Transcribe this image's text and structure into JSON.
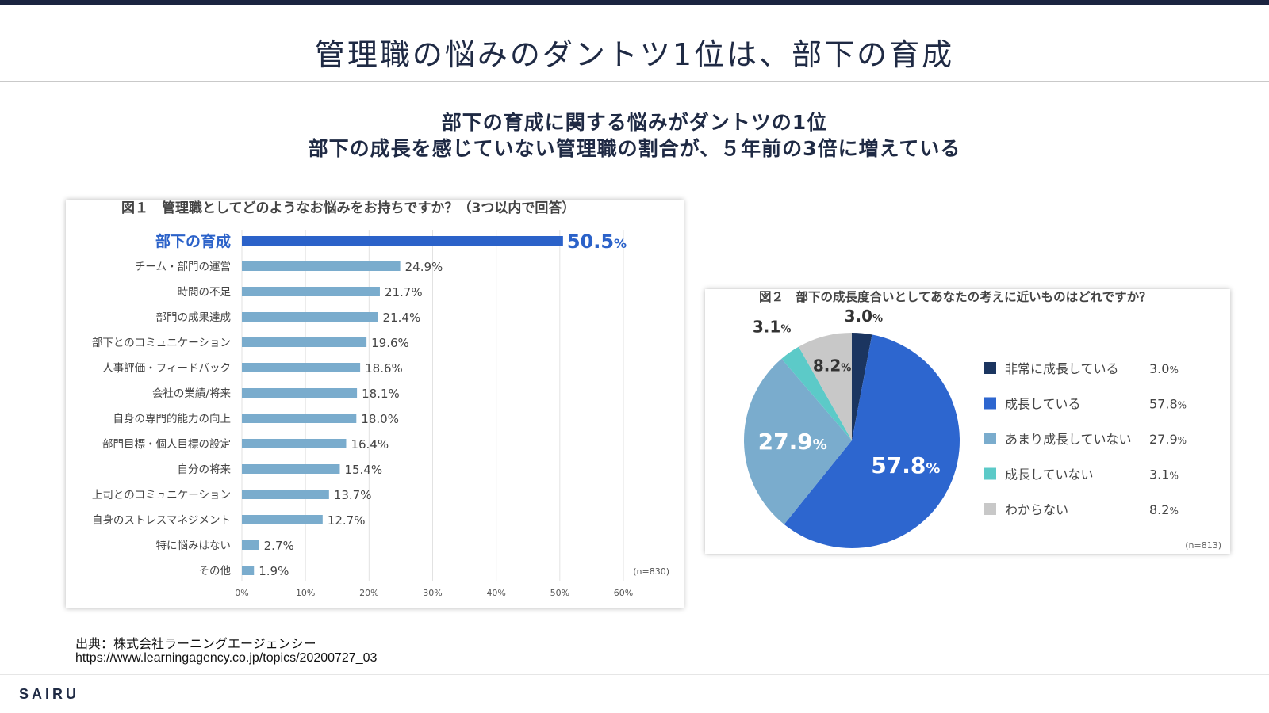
{
  "page": {
    "title": "管理職の悩みのダントツ1位は、部下の育成",
    "headline_1": "部下の育成に関する悩みがダントツの1位",
    "headline_2": "部下の成長を感じていない管理職の割合が、５年前の3倍に増えている",
    "source_label": "出典：株式会社ラーニングエージェンシー",
    "source_url": "https://www.learningagency.co.jp/topics/20200727_03",
    "brand": "SAIRU"
  },
  "chart_data": [
    {
      "type": "bar",
      "orientation": "horizontal",
      "title": "図１　管理職としてどのようなお悩みをお持ちですか？（3つ以内で回答）",
      "note": "(n=830)",
      "categories": [
        "部下の育成",
        "チーム・部門の運営",
        "時間の不足",
        "部門の成果達成",
        "部下とのコミュニケーション",
        "人事評価・フィードバック",
        "会社の業績/将来",
        "自身の専門的能力の向上",
        "部門目標・個人目標の設定",
        "自分の将来",
        "上司とのコミュニケーション",
        "自身のストレスマネジメント",
        "特に悩みはない",
        "その他"
      ],
      "values": [
        50.5,
        24.9,
        21.7,
        21.4,
        19.6,
        18.6,
        18.1,
        18.0,
        16.4,
        15.4,
        13.7,
        12.7,
        2.7,
        1.9
      ],
      "highlight_index": 0,
      "xlim": [
        0,
        60
      ],
      "xticks": [
        "0%",
        "10%",
        "20%",
        "30%",
        "40%",
        "50%",
        "60%"
      ],
      "grid": "vertical",
      "colors": {
        "bar": "#7aaccd",
        "highlight": "#2b62c9",
        "highlight_text": "#2b62c9"
      }
    },
    {
      "type": "pie",
      "title": "図２　部下の成長度合いとしてあなたの考えに近いものはどれですか？",
      "note": "(n=813)",
      "legend_position": "right",
      "slices": [
        {
          "label": "非常に成長している",
          "value": 3.0,
          "color": "#1b3560"
        },
        {
          "label": "成長している",
          "value": 57.8,
          "color": "#2d66cf"
        },
        {
          "label": "あまり成長していない",
          "value": 27.9,
          "color": "#7aaccd"
        },
        {
          "label": "成長していない",
          "value": 3.1,
          "color": "#5ccac8"
        },
        {
          "label": "わからない",
          "value": 8.2,
          "color": "#c8c8c8"
        }
      ]
    }
  ]
}
